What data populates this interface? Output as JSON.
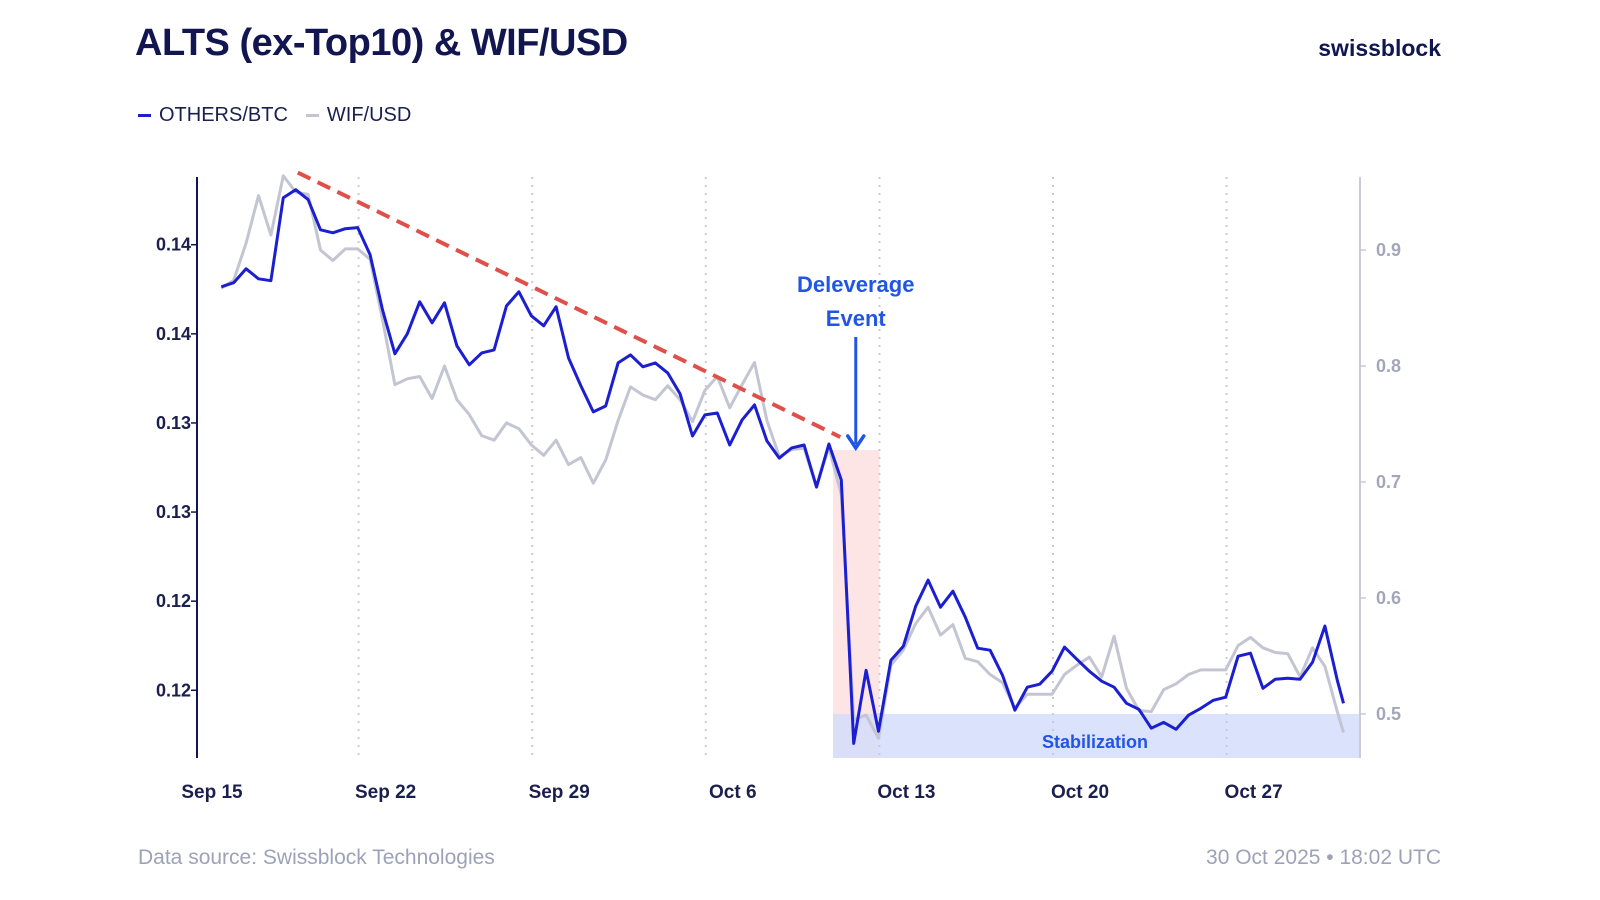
{
  "header": {
    "title": "ALTS (ex-Top10) & WIF/USD",
    "logo": "swissblock"
  },
  "footer": {
    "source": "Data source: Swissblock Technologies",
    "timestamp": "30 Oct 2025 • 18:02 UTC"
  },
  "chart_data": {
    "type": "line",
    "title": "ALTS (ex-Top10) & WIF/USD",
    "legend_position": "top-left",
    "grid": "vertical dotted",
    "colors": {
      "others_btc": "#1c1fd0",
      "wif_usd": "#c3c5d3",
      "trendline": "#e0504a",
      "deleverage_band": "#fde0e0",
      "stabilization_band": "#d3defa",
      "annotation": "#2255e6"
    },
    "x_ticks": [
      {
        "date": "2025-09-15",
        "label": "Sep 15"
      },
      {
        "date": "2025-09-22",
        "label": "Sep 22"
      },
      {
        "date": "2025-09-29",
        "label": "Sep 29"
      },
      {
        "date": "2025-10-06",
        "label": "Oct 6"
      },
      {
        "date": "2025-10-13",
        "label": "Oct 13"
      },
      {
        "date": "2025-10-20",
        "label": "Oct 20"
      },
      {
        "date": "2025-10-27",
        "label": "Oct 27"
      }
    ],
    "left_axis": {
      "ylim": [
        0.1137,
        0.1463
      ],
      "ticks": [
        0.1425,
        0.1375,
        0.1325,
        0.1275,
        0.1225,
        0.1175
      ],
      "tick_labels": [
        "0.14",
        "0.14",
        "0.13",
        "0.13",
        "0.12",
        "0.12"
      ]
    },
    "right_axis": {
      "ylim": [
        0.462,
        0.963
      ],
      "ticks": [
        0.9,
        0.8,
        0.7,
        0.6,
        0.5
      ],
      "tick_labels": [
        "0.9",
        "0.8",
        "0.7",
        "0.6",
        "0.5"
      ]
    },
    "x": [
      "2025-09-15T09:00",
      "2025-09-15T21:00",
      "2025-09-16T09:00",
      "2025-09-16T21:00",
      "2025-09-17T09:00",
      "2025-09-17T21:00",
      "2025-09-18T09:00",
      "2025-09-18T21:00",
      "2025-09-19T09:00",
      "2025-09-19T21:00",
      "2025-09-20T09:00",
      "2025-09-20T21:00",
      "2025-09-21T09:00",
      "2025-09-21T21:00",
      "2025-09-22T09:00",
      "2025-09-22T21:00",
      "2025-09-23T09:00",
      "2025-09-23T21:00",
      "2025-09-24T09:00",
      "2025-09-24T21:00",
      "2025-09-25T09:00",
      "2025-09-25T21:00",
      "2025-09-26T09:00",
      "2025-09-26T21:00",
      "2025-09-27T09:00",
      "2025-09-27T21:00",
      "2025-09-28T09:00",
      "2025-09-28T21:00",
      "2025-09-29T09:00",
      "2025-09-29T21:00",
      "2025-09-30T09:00",
      "2025-09-30T21:00",
      "2025-10-01T09:00",
      "2025-10-01T21:00",
      "2025-10-02T09:00",
      "2025-10-02T21:00",
      "2025-10-03T09:00",
      "2025-10-03T21:00",
      "2025-10-04T09:00",
      "2025-10-04T21:00",
      "2025-10-05T09:00",
      "2025-10-05T21:00",
      "2025-10-06T09:00",
      "2025-10-06T21:00",
      "2025-10-07T09:00",
      "2025-10-07T21:00",
      "2025-10-08T09:00",
      "2025-10-08T21:00",
      "2025-10-09T09:00",
      "2025-10-09T21:00",
      "2025-10-10T09:00",
      "2025-10-10T21:00",
      "2025-10-11T09:00",
      "2025-10-11T21:00",
      "2025-10-12T09:00",
      "2025-10-12T21:00",
      "2025-10-13T09:00",
      "2025-10-13T21:00",
      "2025-10-14T09:00",
      "2025-10-14T21:00",
      "2025-10-15T09:00",
      "2025-10-15T21:00",
      "2025-10-16T09:00",
      "2025-10-16T21:00",
      "2025-10-17T09:00",
      "2025-10-17T21:00",
      "2025-10-18T09:00",
      "2025-10-18T21:00",
      "2025-10-19T09:00",
      "2025-10-19T21:00",
      "2025-10-20T09:00",
      "2025-10-20T21:00",
      "2025-10-21T09:00",
      "2025-10-21T21:00",
      "2025-10-22T09:00",
      "2025-10-22T21:00",
      "2025-10-23T09:00",
      "2025-10-23T21:00",
      "2025-10-24T09:00",
      "2025-10-24T21:00",
      "2025-10-25T09:00",
      "2025-10-25T21:00",
      "2025-10-26T09:00",
      "2025-10-26T21:00",
      "2025-10-27T09:00",
      "2025-10-27T21:00",
      "2025-10-28T09:00",
      "2025-10-28T21:00",
      "2025-10-29T09:00",
      "2025-10-29T21:00",
      "2025-10-30T09:00",
      "2025-10-30T15:00"
    ],
    "series": [
      {
        "name": "OTHERS/BTC",
        "axis": "left",
        "values": [
          0.14014,
          0.14037,
          0.14115,
          0.14059,
          0.14048,
          0.14514,
          0.14559,
          0.14503,
          0.14334,
          0.14317,
          0.1434,
          0.14346,
          0.14194,
          0.13885,
          0.13638,
          0.1375,
          0.1393,
          0.13812,
          0.13924,
          0.13683,
          0.13576,
          0.13643,
          0.1366,
          0.13907,
          0.13986,
          0.13851,
          0.13795,
          0.13902,
          0.13615,
          0.13458,
          0.13312,
          0.13345,
          0.13587,
          0.13632,
          0.13565,
          0.13587,
          0.13531,
          0.13413,
          0.13177,
          0.13295,
          0.13306,
          0.13126,
          0.13267,
          0.13351,
          0.13149,
          0.13053,
          0.1311,
          0.13126,
          0.1289,
          0.13132,
          0.1293,
          0.11452,
          0.11862,
          0.1152,
          0.11919,
          0.11997,
          0.12222,
          0.12368,
          0.12216,
          0.12306,
          0.1216,
          0.11986,
          0.11975,
          0.11834,
          0.11638,
          0.11767,
          0.11784,
          0.11857,
          0.11992,
          0.11924,
          0.11857,
          0.11801,
          0.11767,
          0.11677,
          0.11643,
          0.11537,
          0.1157,
          0.11531,
          0.1161,
          0.11649,
          0.11694,
          0.11711,
          0.11941,
          0.11958,
          0.11761,
          0.11812,
          0.11817,
          0.11812,
          0.11907,
          0.1211,
          0.11806,
          0.11677
        ]
      },
      {
        "name": "WIF/USD",
        "axis": "right",
        "values": [
          0.867,
          0.874,
          0.906,
          0.947,
          0.913,
          0.964,
          0.95,
          0.948,
          0.9,
          0.891,
          0.901,
          0.901,
          0.892,
          0.84,
          0.784,
          0.789,
          0.791,
          0.772,
          0.8,
          0.771,
          0.758,
          0.74,
          0.736,
          0.751,
          0.746,
          0.732,
          0.723,
          0.736,
          0.715,
          0.721,
          0.699,
          0.719,
          0.753,
          0.782,
          0.775,
          0.771,
          0.783,
          0.771,
          0.752,
          0.779,
          0.791,
          0.764,
          0.784,
          0.803,
          0.753,
          0.722,
          0.728,
          0.729,
          0.696,
          0.73,
          0.689,
          0.495,
          0.499,
          0.479,
          0.542,
          0.555,
          0.578,
          0.592,
          0.568,
          0.577,
          0.548,
          0.545,
          0.534,
          0.527,
          0.505,
          0.517,
          0.517,
          0.517,
          0.534,
          0.542,
          0.549,
          0.532,
          0.567,
          0.522,
          0.503,
          0.502,
          0.521,
          0.526,
          0.534,
          0.538,
          0.538,
          0.538,
          0.559,
          0.566,
          0.557,
          0.553,
          0.552,
          0.532,
          0.557,
          0.541,
          0.502,
          0.484
        ]
      }
    ],
    "annotations": {
      "trendline": {
        "from": {
          "date": "2025-09-18T11:00",
          "value": 0.14655
        },
        "to": {
          "date": "2025-10-10T08:00",
          "value": 0.13171
        },
        "style": "dashed"
      },
      "deleverage": {
        "label_line1": "Deleverage",
        "label_line2": "Event",
        "arrow_date": "2025-10-10T23:00",
        "band_from": "2025-10-10T01:00",
        "band_to": "2025-10-11T22:00",
        "band_top_value": 0.13098
      },
      "stabilization": {
        "label": "Stabilization",
        "from": "2025-10-10T01:00",
        "top_value_right": 0.5
      }
    }
  }
}
